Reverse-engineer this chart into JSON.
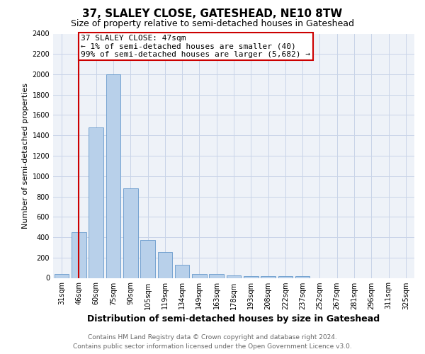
{
  "title": "37, SLALEY CLOSE, GATESHEAD, NE10 8TW",
  "subtitle": "Size of property relative to semi-detached houses in Gateshead",
  "xlabel": "Distribution of semi-detached houses by size in Gateshead",
  "ylabel": "Number of semi-detached properties",
  "footer_line1": "Contains HM Land Registry data © Crown copyright and database right 2024.",
  "footer_line2": "Contains public sector information licensed under the Open Government Licence v3.0.",
  "bar_labels": [
    "31sqm",
    "46sqm",
    "60sqm",
    "75sqm",
    "90sqm",
    "105sqm",
    "119sqm",
    "134sqm",
    "149sqm",
    "163sqm",
    "178sqm",
    "193sqm",
    "208sqm",
    "222sqm",
    "237sqm",
    "252sqm",
    "267sqm",
    "281sqm",
    "296sqm",
    "311sqm",
    "325sqm"
  ],
  "bar_values": [
    40,
    450,
    1480,
    2000,
    880,
    375,
    255,
    130,
    40,
    40,
    25,
    20,
    15,
    15,
    15,
    0,
    0,
    0,
    0,
    0,
    0
  ],
  "bar_color": "#b8d0ea",
  "bar_edge_color": "#6699cc",
  "ylim": [
    0,
    2400
  ],
  "yticks": [
    0,
    200,
    400,
    600,
    800,
    1000,
    1200,
    1400,
    1600,
    1800,
    2000,
    2200,
    2400
  ],
  "red_line_x": 1.0,
  "annotation_text": "37 SLALEY CLOSE: 47sqm\n← 1% of semi-detached houses are smaller (40)\n99% of semi-detached houses are larger (5,682) →",
  "annotation_box_color": "#cc0000",
  "grid_color": "#c8d4e8",
  "bg_color": "#eef2f8",
  "title_fontsize": 11,
  "subtitle_fontsize": 9,
  "ylabel_fontsize": 8,
  "xlabel_fontsize": 9,
  "tick_fontsize": 7,
  "footer_fontsize": 6.5,
  "ann_fontsize": 8
}
